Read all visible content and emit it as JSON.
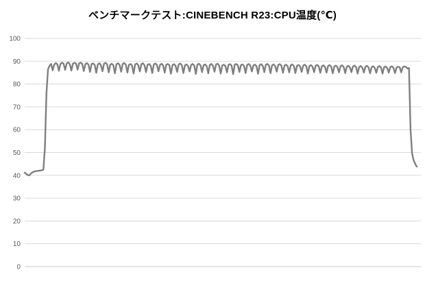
{
  "window": {
    "background": "#ffffff"
  },
  "chart_data": {
    "type": "line",
    "title": "ベンチマークテスト:CINEBENCH R23:CPU温度(℃)",
    "xlabel": "",
    "ylabel": "",
    "x_axis_tick_labels": "none (time series, unlabeled)",
    "ylim": [
      0,
      100
    ],
    "yticks": [
      0,
      10,
      20,
      30,
      40,
      50,
      60,
      70,
      80,
      90,
      100
    ],
    "grid": "horizontal",
    "legend_position": "none",
    "colors": {
      "line": "#7f7f7f",
      "gridline": "#d9d9d9",
      "axis_line": "#c9c9c9",
      "tick_label": "#595959",
      "title": "#000000"
    },
    "line_stroke_width": 2.4,
    "series": [
      {
        "name": "CPU温度(℃)",
        "color": "#7f7f7f",
        "values": [
          41.2,
          40.6,
          40.1,
          40.0,
          40.8,
          41.3,
          41.6,
          41.8,
          41.9,
          42.0,
          42.1,
          42.2,
          42.4,
          52.0,
          76.0,
          86.5,
          88.0,
          88.8,
          86.0,
          88.5,
          89.2,
          88.6,
          85.8,
          88.8,
          89.4,
          88.9,
          86.2,
          89.0,
          89.5,
          88.7,
          85.9,
          88.9,
          89.3,
          89.0,
          86.3,
          89.1,
          89.4,
          88.8,
          85.7,
          88.7,
          89.2,
          88.5,
          85.3,
          88.8,
          89.0,
          88.4,
          84.9,
          88.6,
          89.1,
          88.3,
          85.6,
          88.9,
          89.3,
          88.6,
          85.1,
          88.5,
          88.9,
          88.2,
          84.7,
          88.7,
          89.1,
          88.4,
          85.4,
          88.8,
          89.2,
          88.5,
          85.0,
          88.4,
          88.8,
          88.1,
          84.6,
          88.6,
          89.0,
          88.3,
          85.5,
          88.7,
          89.1,
          88.2,
          85.2,
          88.5,
          88.8,
          88.0,
          84.8,
          88.6,
          89.0,
          88.4,
          85.6,
          88.4,
          88.9,
          88.1,
          85.0,
          88.5,
          88.8,
          88.2,
          84.5,
          88.3,
          88.7,
          88.0,
          85.3,
          88.6,
          89.0,
          88.3,
          84.8,
          88.2,
          88.6,
          87.9,
          85.5,
          88.4,
          88.8,
          88.1,
          84.4,
          88.5,
          88.9,
          88.2,
          85.2,
          88.3,
          88.6,
          87.8,
          84.7,
          88.4,
          88.8,
          88.0,
          85.4,
          88.6,
          88.9,
          88.1,
          84.6,
          88.2,
          88.5,
          87.9,
          85.1,
          88.4,
          88.7,
          88.0,
          84.3,
          88.5,
          88.8,
          88.2,
          85.3,
          88.3,
          88.6,
          87.9,
          84.8,
          88.4,
          88.8,
          88.1,
          85.5,
          88.2,
          88.5,
          87.8,
          84.5,
          88.3,
          88.7,
          88.0,
          85.2,
          88.5,
          88.8,
          88.1,
          84.7,
          88.2,
          88.6,
          87.9,
          85.4,
          88.4,
          88.7,
          88.0,
          84.9,
          88.1,
          88.5,
          87.8,
          85.1,
          88.2,
          88.6,
          87.9,
          84.8,
          88.0,
          88.4,
          87.7,
          85.3,
          88.1,
          88.5,
          87.8,
          84.6,
          87.9,
          88.3,
          87.6,
          85.2,
          88.0,
          88.4,
          87.7,
          84.9,
          87.8,
          88.2,
          87.5,
          85.0,
          87.9,
          88.3,
          87.6,
          84.7,
          87.7,
          88.1,
          87.4,
          85.1,
          87.8,
          88.2,
          87.5,
          84.8,
          87.6,
          88.0,
          87.3,
          85.2,
          87.7,
          88.1,
          87.4,
          84.6,
          87.5,
          87.9,
          87.2,
          85.0,
          87.6,
          88.0,
          87.3,
          84.7,
          87.4,
          87.8,
          87.1,
          84.9,
          87.5,
          87.9,
          87.2,
          84.6,
          87.3,
          87.7,
          87.0,
          85.0,
          87.4,
          87.8,
          87.1,
          84.8,
          87.2,
          87.6,
          87.3,
          85.1,
          87.4,
          87.7,
          87.5,
          86.8,
          87.0,
          60.0,
          49.5,
          46.5,
          45.0,
          43.8
        ]
      }
    ]
  }
}
